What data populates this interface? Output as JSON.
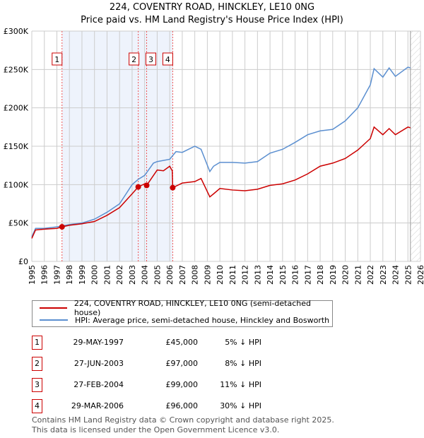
{
  "title_line1": "224, COVENTRY ROAD, HINCKLEY, LE10 0NG",
  "title_line2": "Price paid vs. HM Land Registry's House Price Index (HPI)",
  "colors": {
    "property": "#cc0000",
    "hpi": "#5b8fd0",
    "shade": "#eef3fc"
  },
  "chart_data": {
    "type": "line",
    "title": "224, COVENTRY ROAD, HINCKLEY, LE10 0NG — Price paid vs. HM Land Registry's House Price Index (HPI)",
    "xlim": [
      1995,
      2026
    ],
    "ylim": [
      0,
      300000
    ],
    "yticks": [
      0,
      50000,
      100000,
      150000,
      200000,
      250000,
      300000
    ],
    "ytick_labels": [
      "£0",
      "£50K",
      "£100K",
      "£150K",
      "£200K",
      "£250K",
      "£300K"
    ],
    "xticks": [
      "1995",
      "1996",
      "1997",
      "1998",
      "1999",
      "2000",
      "2001",
      "2002",
      "2003",
      "2004",
      "2005",
      "2006",
      "2007",
      "2008",
      "2009",
      "2010",
      "2011",
      "2012",
      "2013",
      "2014",
      "2015",
      "2016",
      "2017",
      "2018",
      "2019",
      "2020",
      "2021",
      "2022",
      "2023",
      "2024",
      "2025",
      "2026"
    ],
    "grid": true,
    "series": [
      {
        "name": "224, COVENTRY ROAD, HINCKLEY, LE10 0NG (semi-detached house)",
        "x": [
          1995.0,
          1995.3,
          1996,
          1997,
          1997.41,
          1998,
          1999,
          2000,
          2001,
          2002,
          2003,
          2003.49,
          2004,
          2004.16,
          2005,
          2005.5,
          2006.0,
          2006.2,
          2006.24,
          2007,
          2008,
          2008.5,
          2009.2,
          2009.5,
          2010,
          2011,
          2012,
          2013,
          2014,
          2015,
          2016,
          2017,
          2018,
          2019,
          2020,
          2021,
          2022,
          2022.3,
          2023,
          2023.5,
          2024,
          2025,
          2025.2
        ],
        "y": [
          30000,
          41000,
          42000,
          43000,
          45000,
          47000,
          49000,
          52000,
          60000,
          70000,
          88000,
          97000,
          101000,
          99000,
          119000,
          118000,
          124000,
          118000,
          96000,
          102000,
          104000,
          108000,
          84000,
          88000,
          95000,
          93000,
          92000,
          94000,
          99000,
          101000,
          106000,
          114000,
          124000,
          128000,
          134000,
          145000,
          160000,
          175000,
          165000,
          173000,
          165000,
          175000,
          174000
        ]
      },
      {
        "name": "HPI: Average price, semi-detached house, Hinckley and Bosworth",
        "x": [
          1995.0,
          1995.3,
          1996,
          1997,
          1998,
          1999,
          2000,
          2001,
          2002,
          2003,
          2003.5,
          2004,
          2004.7,
          2005,
          2006,
          2006.5,
          2007,
          2008,
          2008.5,
          2009.2,
          2009.5,
          2010,
          2011,
          2012,
          2013,
          2014,
          2015,
          2016,
          2017,
          2018,
          2019,
          2020,
          2021,
          2022,
          2022.3,
          2023,
          2023.5,
          2024,
          2025,
          2025.2
        ],
        "y": [
          32000,
          43000,
          43000,
          45000,
          48000,
          50000,
          55000,
          64000,
          75000,
          100000,
          107000,
          112000,
          128000,
          130000,
          133000,
          143000,
          142000,
          150000,
          146000,
          117000,
          124000,
          129000,
          129000,
          128000,
          130000,
          141000,
          146000,
          155000,
          165000,
          170000,
          172000,
          183000,
          200000,
          230000,
          251000,
          240000,
          252000,
          241000,
          253000,
          252000
        ]
      }
    ],
    "sales": [
      {
        "label": "1",
        "x": 1997.41,
        "y": 45000
      },
      {
        "label": "2",
        "x": 2003.49,
        "y": 97000
      },
      {
        "label": "3",
        "x": 2004.16,
        "y": 99000
      },
      {
        "label": "4",
        "x": 2006.24,
        "y": 96000
      }
    ],
    "shaded_range": [
      1997.41,
      2006.24
    ],
    "forecast_from": 2025.2,
    "legend": "below"
  },
  "legend": {
    "property": "224, COVENTRY ROAD, HINCKLEY, LE10 0NG (semi-detached house)",
    "hpi": "HPI: Average price, semi-detached house, Hinckley and Bosworth"
  },
  "transactions": [
    {
      "num": "1",
      "date": "29-MAY-1997",
      "price": "£45,000",
      "diff": "5% ↓ HPI"
    },
    {
      "num": "2",
      "date": "27-JUN-2003",
      "price": "£97,000",
      "diff": "8% ↓ HPI"
    },
    {
      "num": "3",
      "date": "27-FEB-2004",
      "price": "£99,000",
      "diff": "11% ↓ HPI"
    },
    {
      "num": "4",
      "date": "29-MAR-2006",
      "price": "£96,000",
      "diff": "30% ↓ HPI"
    }
  ],
  "footer": {
    "line1": "Contains HM Land Registry data © Crown copyright and database right 2025.",
    "line2": "This data is licensed under the Open Government Licence v3.0."
  }
}
